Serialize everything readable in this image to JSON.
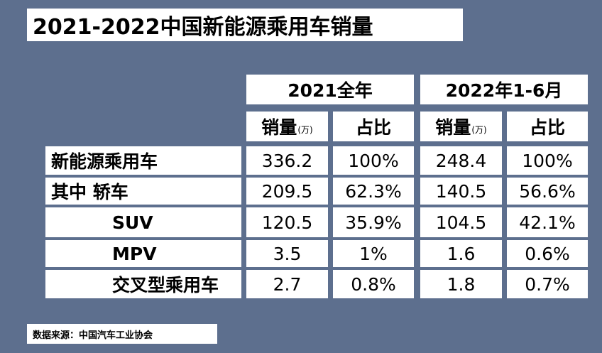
{
  "title": "2021-2022中国新能源乘用车销量",
  "periods": [
    "2021全年",
    "2022年1-6月"
  ],
  "col_headers": {
    "sales": "销量",
    "unit": "(万)",
    "share": "占比"
  },
  "rows": [
    {
      "label": "新能源乘用车",
      "v2021": "336.2",
      "s2021": "100%",
      "v2022": "248.4",
      "s2022": "100%"
    },
    {
      "label": "其中 轿车",
      "v2021": "209.5",
      "s2021": "62.3%",
      "v2022": "140.5",
      "s2022": "56.6%"
    },
    {
      "label": "SUV",
      "v2021": "120.5",
      "s2021": "35.9%",
      "v2022": "104.5",
      "s2022": "42.1%"
    },
    {
      "label": "MPV",
      "v2021": "3.5",
      "s2021": "1%",
      "v2022": "1.6",
      "s2022": "0.6%"
    },
    {
      "label": "交叉型乘用车",
      "v2021": "2.7",
      "s2021": "0.8%",
      "v2022": "1.8",
      "s2022": "0.7%"
    }
  ],
  "source": "数据来源：中国汽车工业协会"
}
